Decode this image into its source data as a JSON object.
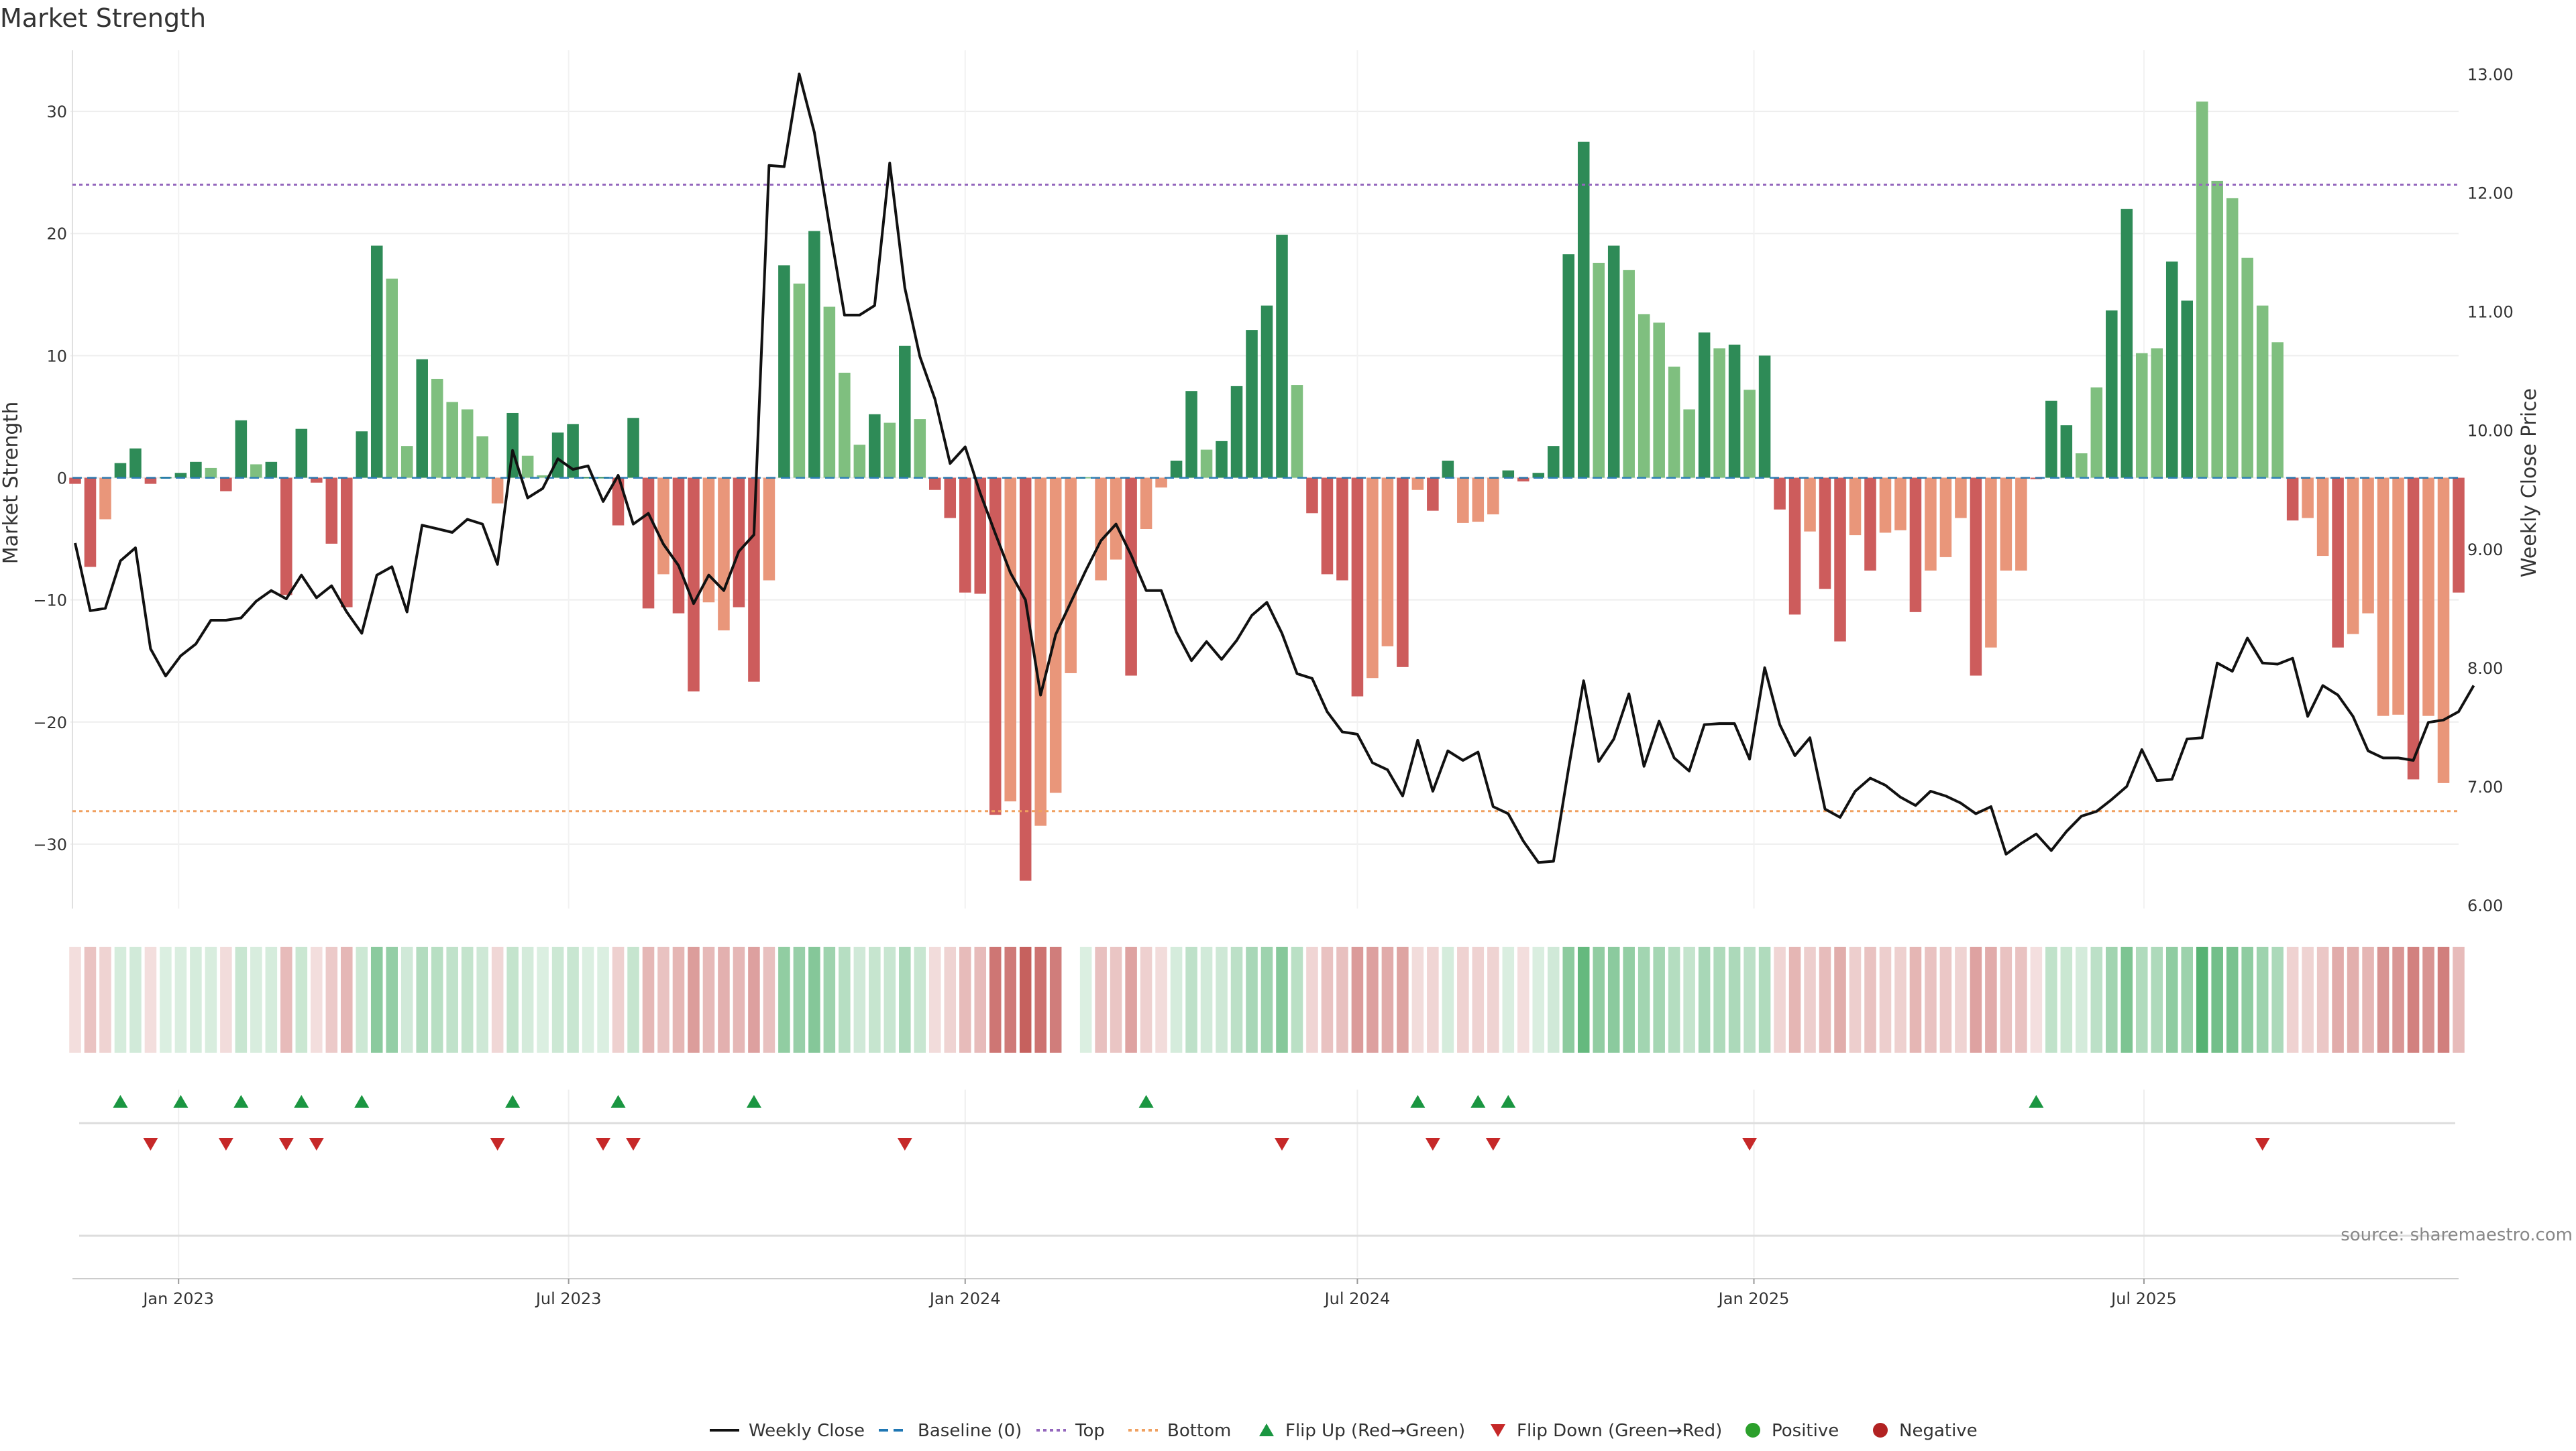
{
  "chart_data": {
    "type": "bar",
    "title": "Market Strength",
    "ylabel_left": "Market Strength",
    "ylabel_right": "Weekly Close Price",
    "source": "source: sharemaestro.com",
    "ylim_left": [
      -35,
      35
    ],
    "ylim_right": [
      6.0,
      13.2
    ],
    "yticks_left": [
      -30,
      -20,
      -10,
      0,
      10,
      20,
      30
    ],
    "yticks_right": [
      "6.00",
      "7.00",
      "8.00",
      "9.00",
      "10.00",
      "11.00",
      "12.00",
      "13.00"
    ],
    "top_level": 24,
    "bottom_level": -27.3,
    "x_start": "2022-11-14",
    "x_end": "2025-11-24",
    "xticks": [
      {
        "date": "2023-01-01",
        "label": "Jan 2023"
      },
      {
        "date": "2023-07-01",
        "label": "Jul 2023"
      },
      {
        "date": "2024-01-01",
        "label": "Jan 2024"
      },
      {
        "date": "2024-07-01",
        "label": "Jul 2024"
      },
      {
        "date": "2025-01-01",
        "label": "Jan 2025"
      },
      {
        "date": "2025-07-01",
        "label": "Jul 2025"
      }
    ],
    "grid": true,
    "legend_position": "bottom-center",
    "legend": [
      "Weekly Close",
      "Baseline (0)",
      "Top",
      "Bottom",
      "Flip Up (Red→Green)",
      "Flip Down (Green→Red)",
      "Positive",
      "Negative"
    ],
    "colors": {
      "pos_strong": "#2e8b57",
      "pos_weak": "#7fbf7f",
      "neg_strong": "#cd5c5c",
      "neg_weak": "#e9967a",
      "price": "#111111",
      "top": "#9467bd",
      "bottom": "#f0a060",
      "baseline": "#1f77b4",
      "flip_up": "#1a9641",
      "flip_down": "#c62828",
      "positive_dot": "#2ca02c",
      "negative_dot": "#b22222"
    },
    "strength": [
      -0.5,
      -7.3,
      -3.4,
      1.2,
      2.4,
      -0.5,
      0,
      0.4,
      1.3,
      0.8,
      -1.1,
      4.7,
      1.1,
      1.3,
      -9.6,
      4.0,
      -0.4,
      -5.4,
      -10.6,
      3.8,
      19.0,
      16.3,
      2.6,
      9.7,
      8.1,
      6.2,
      5.6,
      3.4,
      -2.1,
      5.3,
      1.8,
      0.2,
      3.7,
      4.4,
      0,
      0,
      -3.9,
      4.9,
      -10.7,
      -7.9,
      -11.1,
      -17.5,
      -10.2,
      -12.5,
      -10.6,
      -16.7,
      -8.4,
      17.4,
      15.9,
      20.2,
      14.0,
      8.6,
      2.7,
      5.2,
      4.5,
      10.8,
      4.8,
      -1.0,
      -3.3,
      -9.4,
      -9.5,
      -27.6,
      -26.5,
      -33.0,
      -28.5,
      -25.8,
      -16.0,
      0,
      -8.4,
      -6.7,
      -16.2,
      -4.2,
      -0.8,
      1.4,
      7.1,
      2.3,
      3.0,
      7.5,
      12.1,
      14.1,
      19.9,
      7.6,
      -2.9,
      -7.9,
      -8.4,
      -17.9,
      -16.4,
      -13.8,
      -15.5,
      -1.0,
      -2.7,
      1.4,
      -3.7,
      -3.6,
      -3.0,
      0.6,
      -0.3,
      0.4,
      2.6,
      18.3,
      27.5,
      17.6,
      19.0,
      17.0,
      13.4,
      12.7,
      9.1,
      5.6,
      11.9,
      10.6,
      10.9,
      7.2,
      10.0,
      -2.6,
      -11.2,
      -4.4,
      -9.1,
      -13.4,
      -4.7,
      -7.6,
      -4.5,
      -4.3,
      -11.0,
      -7.6,
      -6.5,
      -3.3,
      -16.2,
      -13.9,
      -7.6,
      -7.6,
      -0.1,
      6.3,
      4.3,
      2.0,
      7.4,
      13.7,
      22.0,
      10.2,
      10.6,
      17.7,
      14.5,
      30.8,
      24.3,
      22.9,
      18.0,
      14.1,
      11.1,
      -3.5,
      -3.3,
      -6.4,
      -13.9,
      -12.8,
      -11.1,
      -19.5,
      -19.4,
      -24.7,
      -19.5,
      -25.0,
      -9.4
    ],
    "strength_shade": [
      "s",
      "s",
      "w",
      "s",
      "s",
      "s",
      "s",
      "s",
      "s",
      "w",
      "s",
      "s",
      "w",
      "s",
      "s",
      "s",
      "s",
      "s",
      "s",
      "s",
      "s",
      "w",
      "w",
      "s",
      "w",
      "w",
      "w",
      "w",
      "w",
      "s",
      "w",
      "w",
      "s",
      "s",
      "s",
      "s",
      "s",
      "s",
      "s",
      "w",
      "s",
      "s",
      "w",
      "w",
      "s",
      "s",
      "w",
      "s",
      "w",
      "s",
      "w",
      "w",
      "w",
      "s",
      "w",
      "s",
      "w",
      "s",
      "s",
      "s",
      "s",
      "s",
      "w",
      "s",
      "w",
      "w",
      "w",
      "w",
      "w",
      "w",
      "s",
      "w",
      "w",
      "s",
      "s",
      "w",
      "s",
      "s",
      "s",
      "s",
      "s",
      "w",
      "s",
      "s",
      "s",
      "s",
      "w",
      "w",
      "s",
      "w",
      "s",
      "s",
      "w",
      "w",
      "w",
      "s",
      "s",
      "s",
      "s",
      "s",
      "s",
      "w",
      "s",
      "w",
      "w",
      "w",
      "w",
      "w",
      "s",
      "w",
      "s",
      "w",
      "s",
      "s",
      "s",
      "w",
      "s",
      "s",
      "w",
      "s",
      "w",
      "w",
      "s",
      "w",
      "w",
      "w",
      "s",
      "w",
      "w",
      "w",
      "s",
      "s",
      "s",
      "w",
      "w",
      "s",
      "s",
      "w",
      "w",
      "s",
      "s",
      "w",
      "w",
      "w",
      "w",
      "w",
      "w",
      "s",
      "w",
      "w",
      "s",
      "w",
      "w",
      "w",
      "w",
      "s",
      "w",
      "w",
      "s",
      "w",
      "w",
      "w"
    ],
    "price": [
      9.05,
      8.48,
      8.5,
      8.9,
      9.01,
      8.16,
      7.93,
      8.1,
      8.2,
      8.4,
      8.4,
      8.42,
      8.56,
      8.65,
      8.58,
      8.78,
      8.59,
      8.69,
      8.47,
      8.29,
      8.78,
      8.85,
      8.47,
      9.2,
      9.17,
      9.14,
      9.25,
      9.21,
      8.87,
      9.83,
      9.43,
      9.51,
      9.76,
      9.67,
      9.7,
      9.4,
      9.62,
      9.21,
      9.3,
      9.04,
      8.86,
      8.54,
      8.78,
      8.65,
      8.98,
      9.12,
      12.23,
      12.22,
      13.0,
      12.51,
      11.72,
      10.97,
      10.97,
      11.05,
      12.25,
      11.2,
      10.62,
      10.26,
      9.72,
      9.86,
      9.47,
      9.13,
      8.8,
      8.57,
      7.77,
      8.28,
      8.55,
      8.82,
      9.07,
      9.21,
      8.95,
      8.65,
      8.65,
      8.3,
      8.06,
      8.22,
      8.07,
      8.23,
      8.44,
      8.55,
      8.29,
      7.95,
      7.91,
      7.63,
      7.46,
      7.44,
      7.2,
      7.14,
      6.92,
      7.39,
      6.96,
      7.3,
      7.22,
      7.29,
      6.83,
      6.77,
      6.54,
      6.36,
      6.37,
      7.15,
      7.89,
      7.21,
      7.4,
      7.78,
      7.17,
      7.55,
      7.24,
      7.13,
      7.52,
      7.53,
      7.53,
      7.23,
      8.0,
      7.52,
      7.26,
      7.41,
      6.81,
      6.74,
      6.96,
      7.07,
      7.01,
      6.91,
      6.84,
      6.96,
      6.92,
      6.86,
      6.77,
      6.83,
      6.43,
      6.52,
      6.6,
      6.46,
      6.62,
      6.75,
      6.79,
      6.89,
      7.0,
      7.31,
      7.05,
      7.06,
      7.4,
      7.41,
      8.04,
      7.97,
      8.25,
      8.04,
      8.03,
      8.08,
      7.59,
      7.85,
      7.77,
      7.59,
      7.3,
      7.24,
      7.24,
      7.22,
      7.54,
      7.56,
      7.63,
      7.85
    ],
    "heat_gaps": [
      66
    ],
    "flip_up_weeks": [
      3,
      7,
      11,
      15,
      19,
      29,
      36,
      45,
      71,
      89,
      93,
      95,
      130
    ],
    "flip_down_weeks": [
      5,
      10,
      14,
      16,
      28,
      35,
      37,
      55,
      80,
      90,
      94,
      111,
      145
    ]
  }
}
